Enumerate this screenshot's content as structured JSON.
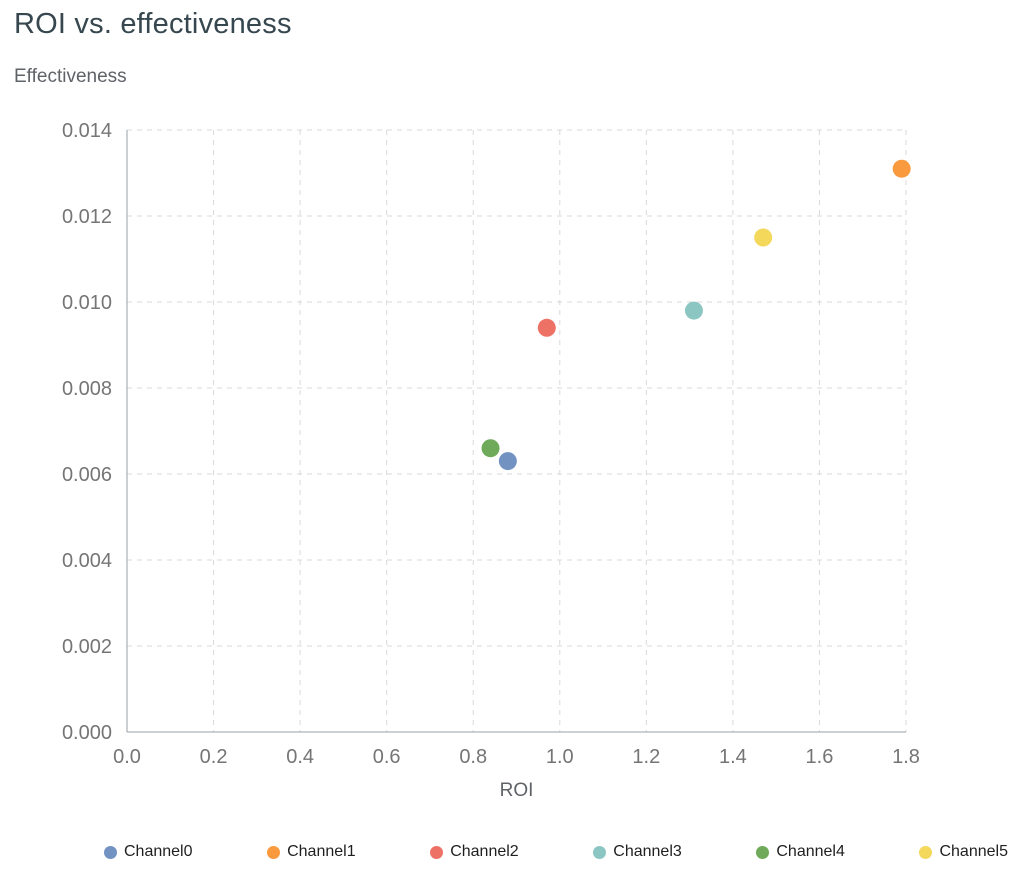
{
  "title": "ROI vs. effectiveness",
  "chart_data": {
    "type": "scatter",
    "title": "ROI vs. effectiveness",
    "xlabel": "ROI",
    "ylabel": "Effectiveness",
    "xlim": [
      0,
      1.8
    ],
    "ylim": [
      0,
      0.014
    ],
    "x_ticks": [
      "0.0",
      "0.2",
      "0.4",
      "0.6",
      "0.8",
      "1.0",
      "1.2",
      "1.4",
      "1.6",
      "1.8"
    ],
    "y_ticks": [
      "0.000",
      "0.002",
      "0.004",
      "0.006",
      "0.008",
      "0.010",
      "0.012",
      "0.014"
    ],
    "grid": true,
    "grid_style": "dashed",
    "legend_position": "bottom",
    "colors": {
      "grid": "#d9d9d9",
      "axis": "#9aa0a6",
      "tick_label": "#757575",
      "title": "#37474f",
      "axis_title": "#5f6368",
      "legend_label": "#1f1f1f"
    },
    "series": [
      {
        "name": "Channel0",
        "color": "#7292c2",
        "x": 0.88,
        "y": 0.0063
      },
      {
        "name": "Channel1",
        "color": "#f89a3d",
        "x": 1.79,
        "y": 0.0131
      },
      {
        "name": "Channel2",
        "color": "#ed7265",
        "x": 0.97,
        "y": 0.0094
      },
      {
        "name": "Channel3",
        "color": "#8cc6c3",
        "x": 1.31,
        "y": 0.0098
      },
      {
        "name": "Channel4",
        "color": "#6fa95a",
        "x": 0.84,
        "y": 0.0066
      },
      {
        "name": "Channel5",
        "color": "#f4d85b",
        "x": 1.47,
        "y": 0.0115
      }
    ]
  }
}
